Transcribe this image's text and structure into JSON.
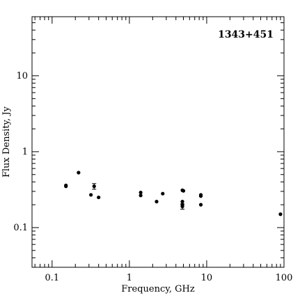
{
  "chart_data": {
    "type": "scatter",
    "title": "1343+451",
    "xlabel": "Frequency, GHz",
    "ylabel": "Flux Density, Jy",
    "xscale": "log",
    "yscale": "log",
    "xlim": [
      0.055,
      100
    ],
    "ylim": [
      0.03,
      60
    ],
    "xticks": [
      {
        "value": 0.1,
        "label": "0.1"
      },
      {
        "value": 1,
        "label": "1"
      },
      {
        "value": 10,
        "label": "10"
      },
      {
        "value": 100,
        "label": "100"
      }
    ],
    "yticks": [
      {
        "value": 0.1,
        "label": "0.1"
      },
      {
        "value": 1,
        "label": "1"
      },
      {
        "value": 10,
        "label": "10"
      }
    ],
    "title_position": "top-right",
    "grid": false,
    "series": [
      {
        "points": [
          {
            "x": 0.151,
            "y": 0.36
          },
          {
            "x": 0.151,
            "y": 0.35
          },
          {
            "x": 0.22,
            "y": 0.53
          },
          {
            "x": 0.318,
            "y": 0.27
          },
          {
            "x": 0.35,
            "y": 0.35,
            "err": 0.03
          },
          {
            "x": 0.4,
            "y": 0.25
          },
          {
            "x": 1.4,
            "y": 0.29
          },
          {
            "x": 1.4,
            "y": 0.265
          },
          {
            "x": 2.25,
            "y": 0.22
          },
          {
            "x": 2.7,
            "y": 0.28
          },
          {
            "x": 4.85,
            "y": 0.31
          },
          {
            "x": 4.85,
            "y": 0.22
          },
          {
            "x": 4.85,
            "y": 0.2
          },
          {
            "x": 4.85,
            "y": 0.19,
            "err": 0.015
          },
          {
            "x": 5.0,
            "y": 0.305
          },
          {
            "x": 8.4,
            "y": 0.27
          },
          {
            "x": 8.4,
            "y": 0.26
          },
          {
            "x": 8.4,
            "y": 0.2
          },
          {
            "x": 90,
            "y": 0.15
          }
        ]
      }
    ]
  }
}
